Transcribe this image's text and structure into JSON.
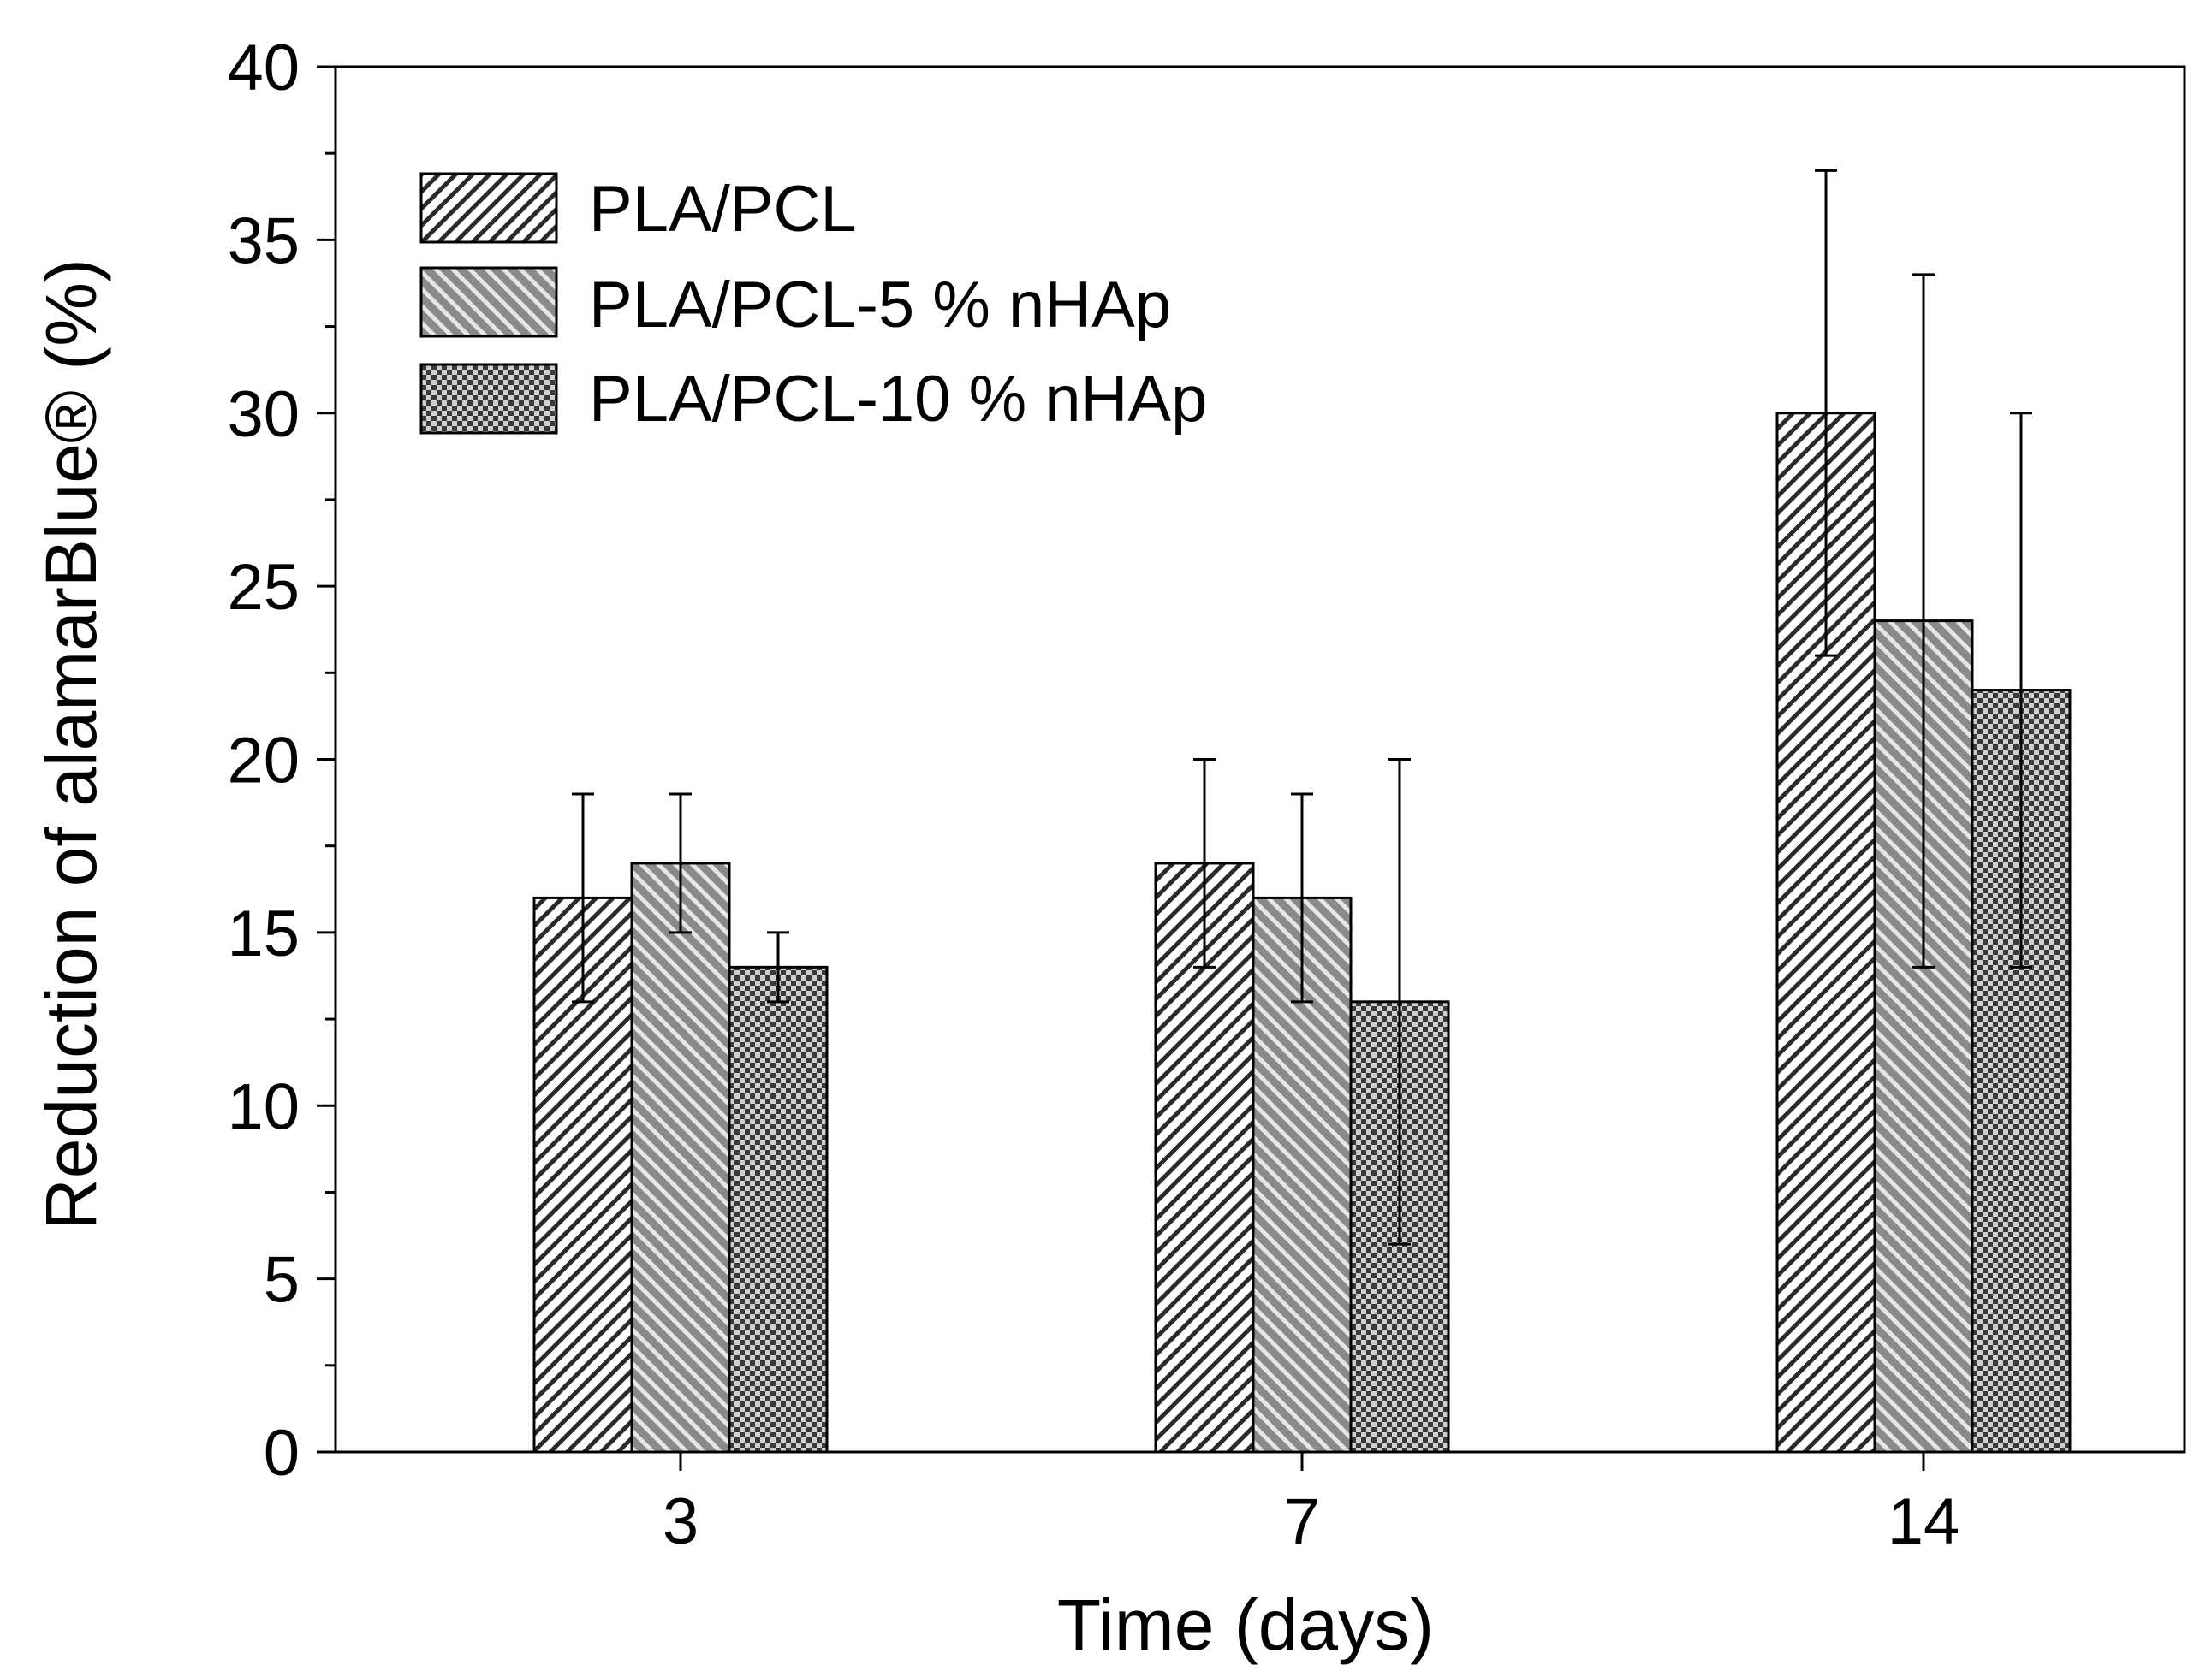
{
  "chart_data": {
    "type": "bar",
    "title": "",
    "xlabel": "Time (days)",
    "ylabel": "Reduction of alamarBlue® (%)",
    "categories": [
      "3",
      "7",
      "14"
    ],
    "ylim": [
      0,
      40
    ],
    "yticks": [
      0,
      5,
      10,
      15,
      20,
      25,
      30,
      35,
      40
    ],
    "grid": false,
    "legend_position": "top-left",
    "series": [
      {
        "name": "PLA/PCL",
        "pattern": "light-diagonal-hatch",
        "values": [
          16,
          17,
          30
        ],
        "error_low": [
          13,
          14,
          23
        ],
        "error_high": [
          19,
          20,
          37
        ]
      },
      {
        "name": "PLA/PCL-5 % nHAp",
        "pattern": "dark-diagonal-hatch",
        "values": [
          17,
          16,
          24
        ],
        "error_low": [
          15,
          13,
          14
        ],
        "error_high": [
          19,
          19,
          34
        ]
      },
      {
        "name": "PLA/PCL-10 % nHAp",
        "pattern": "checkered",
        "values": [
          14,
          13,
          22
        ],
        "error_low": [
          13,
          6,
          14
        ],
        "error_high": [
          15,
          20,
          30
        ]
      }
    ]
  }
}
